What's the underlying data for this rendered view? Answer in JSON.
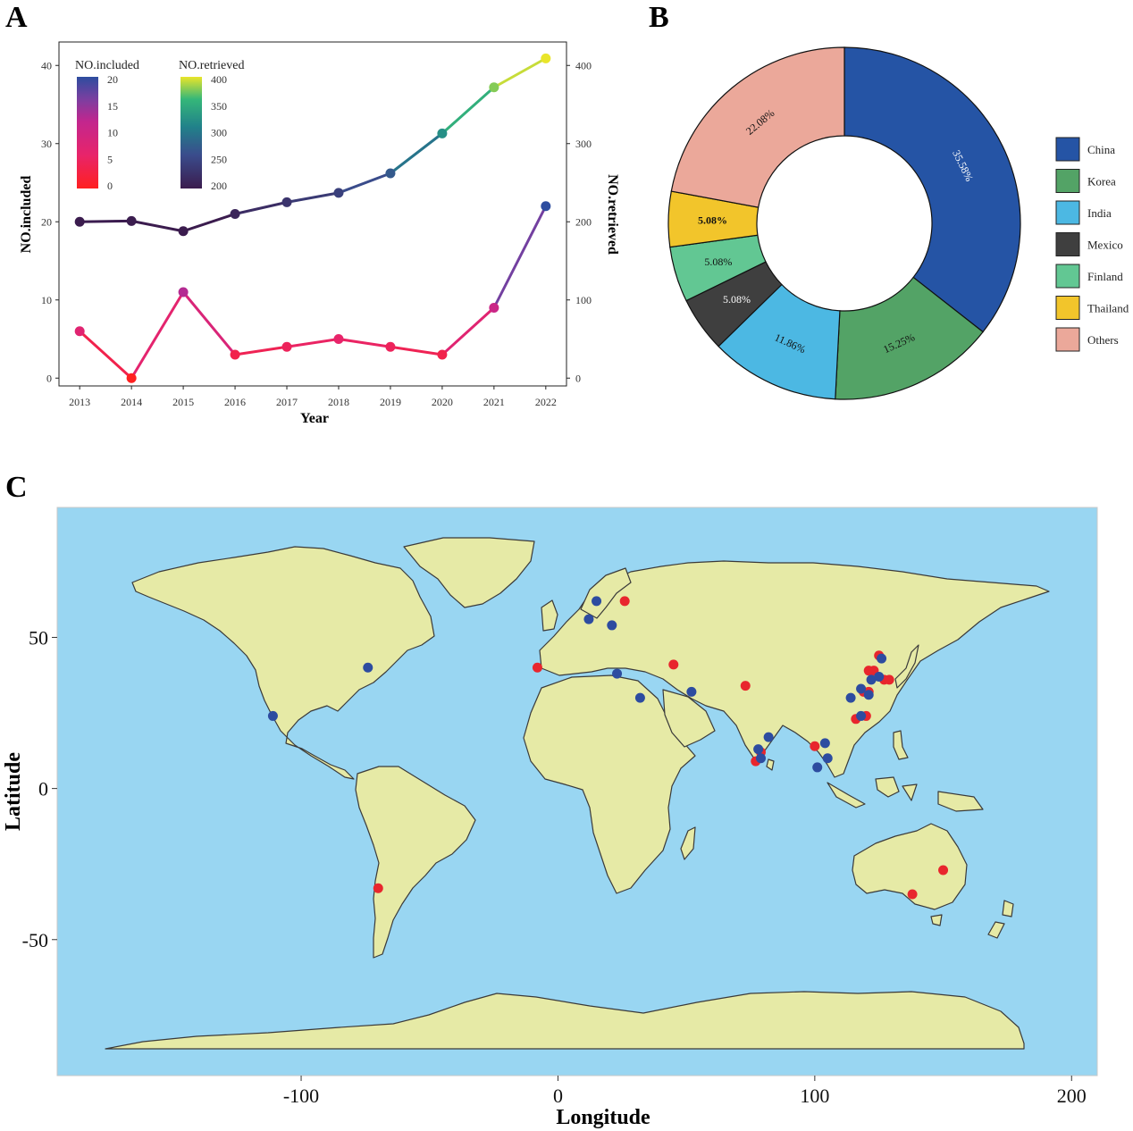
{
  "panels": {
    "a": "A",
    "b": "B",
    "c": "C"
  },
  "chart_data": [
    {
      "type": "line",
      "panel": "A",
      "xlabel": "Year",
      "ylabel": "NO.included",
      "y2label": "NO.retrieved",
      "x": [
        2013,
        2014,
        2015,
        2016,
        2017,
        2018,
        2019,
        2020,
        2021,
        2022
      ],
      "ylim": [
        -1,
        43
      ],
      "y2lim": [
        -10,
        430
      ],
      "yticks": [
        0,
        10,
        20,
        30,
        40
      ],
      "y2ticks": [
        0,
        100,
        200,
        300,
        400
      ],
      "series": [
        {
          "name": "NO.included",
          "axis": "left",
          "values": [
            6,
            0,
            11,
            3,
            4,
            5,
            4,
            3,
            9,
            22
          ]
        },
        {
          "name": "NO.retrieved",
          "axis": "right",
          "values": [
            200,
            201,
            188,
            210,
            225,
            237,
            262,
            313,
            372,
            409
          ]
        }
      ],
      "legends": [
        {
          "title": "NO.included",
          "ticks": [
            0,
            5,
            10,
            15,
            20
          ],
          "colors": [
            "#ff2020",
            "#e8246a",
            "#c2268e",
            "#7b3fa0",
            "#2d4d9f"
          ]
        },
        {
          "title": "NO.retrieved",
          "ticks": [
            200,
            250,
            300,
            350,
            400
          ],
          "colors": [
            "#3b1c4e",
            "#3a4c8c",
            "#21818a",
            "#35b779",
            "#e9e52a"
          ]
        }
      ]
    },
    {
      "type": "pie",
      "panel": "B",
      "donut": true,
      "categories": [
        "China",
        "Korea",
        "India",
        "Mexico",
        "Finland",
        "Thailand",
        "Others"
      ],
      "values": [
        35.58,
        15.25,
        11.86,
        5.08,
        5.08,
        5.08,
        22.08
      ],
      "labels": [
        "35.58%",
        "15.25%",
        "11.86%",
        "5.08%",
        "5.08%",
        "5.08%",
        "22.08%"
      ],
      "colors": [
        "#2554a5",
        "#53a366",
        "#4cb8e3",
        "#3f3f3f",
        "#62c793",
        "#f2c52b",
        "#eba89a"
      ],
      "legend_position": "right"
    },
    {
      "type": "scatter",
      "panel": "C",
      "xlabel": "Longitude",
      "ylabel": "Latitude",
      "xlim": [
        -195,
        210
      ],
      "ylim": [
        -95,
        93
      ],
      "xticks": [
        -100,
        0,
        100,
        200
      ],
      "yticks": [
        -50,
        0,
        50
      ],
      "background": "world-map",
      "series": [
        {
          "color": "#e8262d",
          "points": [
            [
              -70,
              -33
            ],
            [
              -8,
              40
            ],
            [
              26,
              62
            ],
            [
              45,
              41
            ],
            [
              73,
              34
            ],
            [
              79,
              12
            ],
            [
              77,
              9
            ],
            [
              100,
              14
            ],
            [
              116,
              23
            ],
            [
              119,
              32
            ],
            [
              121,
              32
            ],
            [
              121,
              39
            ],
            [
              123,
              39
            ],
            [
              125,
              44
            ],
            [
              127,
              36
            ],
            [
              129,
              36
            ],
            [
              120,
              24
            ],
            [
              150,
              -27
            ],
            [
              138,
              -35
            ]
          ]
        },
        {
          "color": "#2d4ca0",
          "points": [
            [
              -111,
              24
            ],
            [
              -74,
              40
            ],
            [
              12,
              56
            ],
            [
              15,
              62
            ],
            [
              21,
              54
            ],
            [
              23,
              38
            ],
            [
              32,
              30
            ],
            [
              52,
              32
            ],
            [
              82,
              17
            ],
            [
              78,
              13
            ],
            [
              79,
              10
            ],
            [
              101,
              7
            ],
            [
              104,
              15
            ],
            [
              105,
              10
            ],
            [
              114,
              30
            ],
            [
              118,
              24
            ],
            [
              121,
              31
            ],
            [
              122,
              36
            ],
            [
              125,
              37
            ],
            [
              126,
              43
            ],
            [
              118,
              33
            ]
          ]
        }
      ]
    }
  ]
}
